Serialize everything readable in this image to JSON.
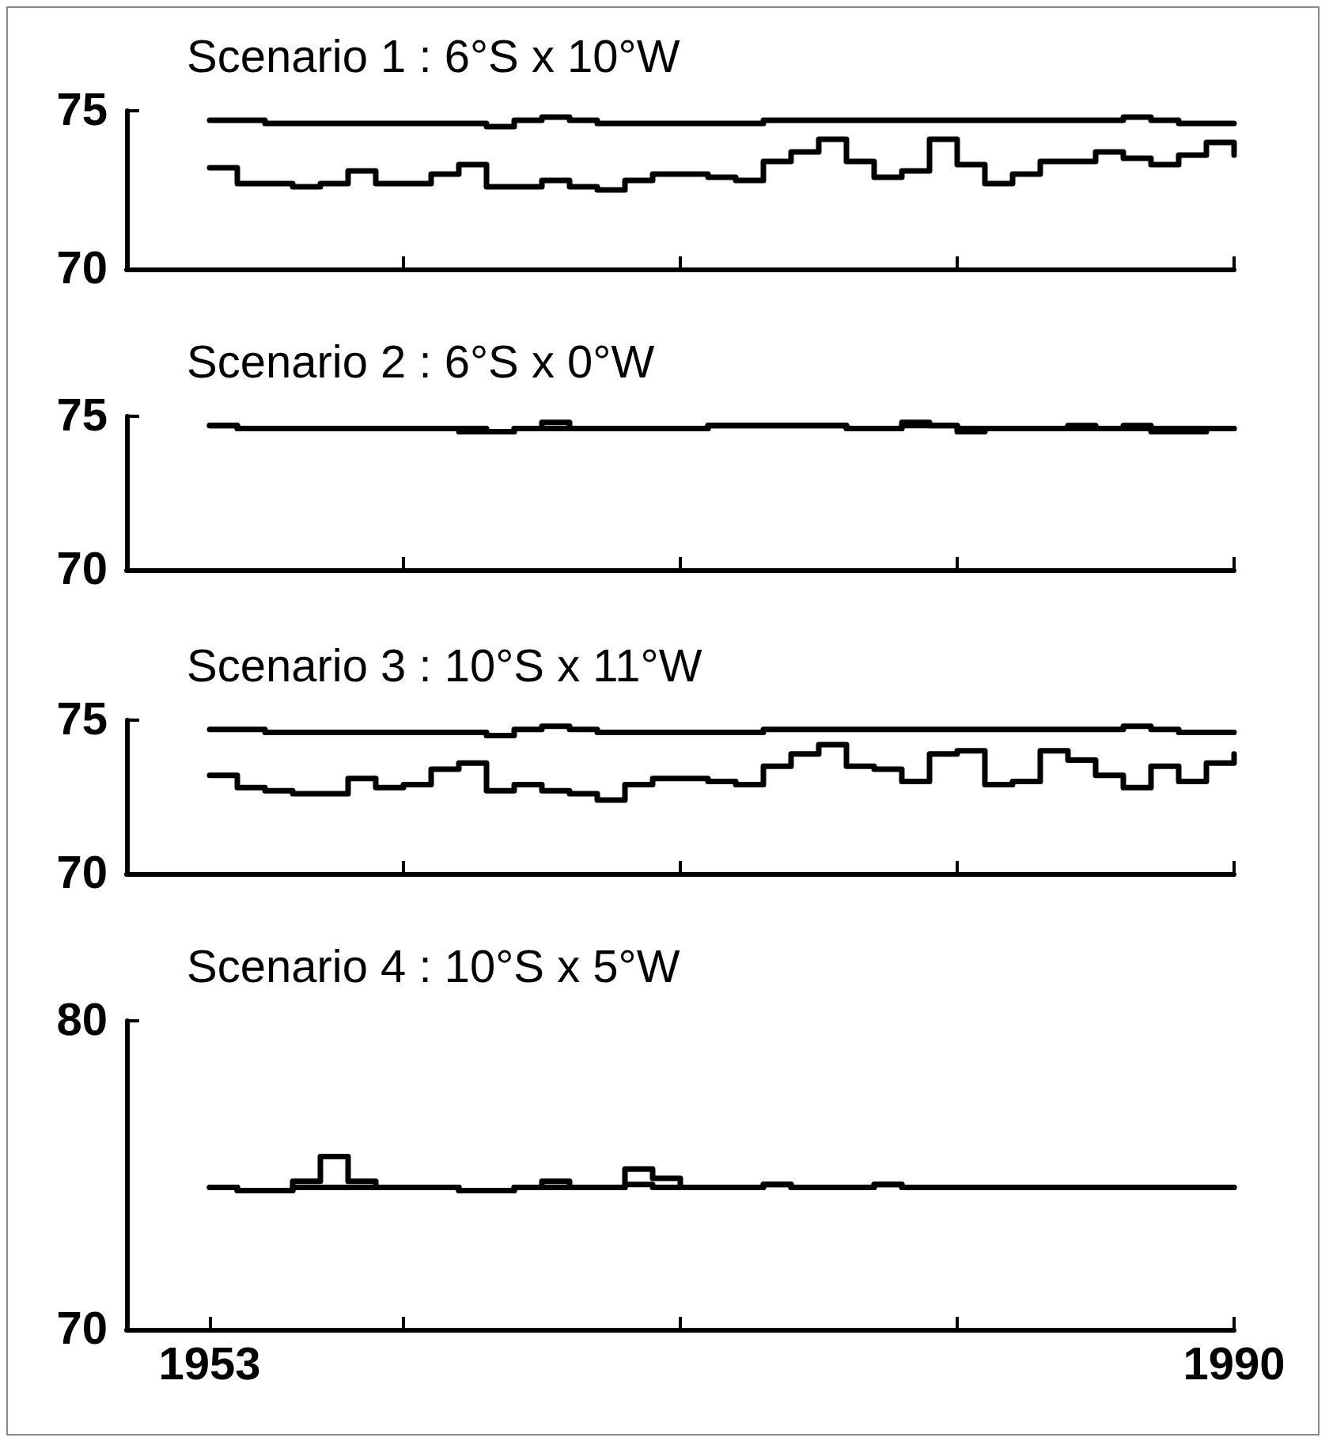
{
  "chart_data": [
    {
      "type": "step",
      "title": "Scenario 1 : 6°S x 10°W",
      "x": [
        1953,
        1954,
        1955,
        1956,
        1957,
        1958,
        1959,
        1960,
        1961,
        1962,
        1963,
        1964,
        1965,
        1966,
        1967,
        1968,
        1969,
        1970,
        1971,
        1972,
        1973,
        1974,
        1975,
        1976,
        1977,
        1978,
        1979,
        1980,
        1981,
        1982,
        1983,
        1984,
        1985,
        1986,
        1987,
        1988,
        1989,
        1990
      ],
      "xlim": [
        1950,
        1990
      ],
      "xticks": [
        {
          "value": 1950,
          "label": null
        },
        {
          "value": 1960,
          "label": null
        },
        {
          "value": 1970,
          "label": null
        },
        {
          "value": 1980,
          "label": null
        },
        {
          "value": 1990,
          "label": null
        }
      ],
      "ylim": [
        70,
        75
      ],
      "yticks": [
        70,
        75
      ],
      "tick_labels": "y",
      "marker": "none",
      "line_style": "solid",
      "series": [
        {
          "color": "#000000",
          "values": [
            74.7,
            74.7,
            74.6,
            74.6,
            74.6,
            74.6,
            74.6,
            74.6,
            74.6,
            74.6,
            74.5,
            74.7,
            74.8,
            74.7,
            74.6,
            74.6,
            74.6,
            74.6,
            74.6,
            74.6,
            74.7,
            74.7,
            74.7,
            74.7,
            74.7,
            74.7,
            74.7,
            74.7,
            74.7,
            74.7,
            74.7,
            74.7,
            74.7,
            74.8,
            74.7,
            74.6,
            74.6,
            74.6
          ]
        },
        {
          "color": "#000000",
          "values": [
            73.2,
            72.7,
            72.7,
            72.6,
            72.7,
            73.1,
            72.7,
            72.7,
            73.0,
            73.3,
            72.6,
            72.6,
            72.8,
            72.6,
            72.5,
            72.8,
            73.0,
            73.0,
            72.9,
            72.8,
            73.4,
            73.7,
            74.1,
            73.4,
            72.9,
            73.1,
            74.1,
            73.3,
            72.7,
            73.0,
            73.4,
            73.4,
            73.7,
            73.5,
            73.3,
            73.6,
            74.0,
            73.6
          ]
        }
      ]
    },
    {
      "type": "step",
      "title": "Scenario 2 : 6°S x 0°W",
      "x": [
        1953,
        1954,
        1955,
        1956,
        1957,
        1958,
        1959,
        1960,
        1961,
        1962,
        1963,
        1964,
        1965,
        1966,
        1967,
        1968,
        1969,
        1970,
        1971,
        1972,
        1973,
        1974,
        1975,
        1976,
        1977,
        1978,
        1979,
        1980,
        1981,
        1982,
        1983,
        1984,
        1985,
        1986,
        1987,
        1988,
        1989,
        1990
      ],
      "xlim": [
        1950,
        1990
      ],
      "xticks": [
        {
          "value": 1950,
          "label": null
        },
        {
          "value": 1960,
          "label": null
        },
        {
          "value": 1970,
          "label": null
        },
        {
          "value": 1980,
          "label": null
        },
        {
          "value": 1990,
          "label": null
        }
      ],
      "ylim": [
        70,
        75
      ],
      "yticks": [
        70,
        75
      ],
      "tick_labels": "y",
      "marker": "none",
      "line_style": "solid",
      "series": [
        {
          "color": "#000000",
          "values": [
            74.7,
            74.6,
            74.6,
            74.6,
            74.6,
            74.6,
            74.6,
            74.6,
            74.6,
            74.6,
            74.5,
            74.6,
            74.6,
            74.6,
            74.6,
            74.6,
            74.6,
            74.6,
            74.7,
            74.7,
            74.7,
            74.7,
            74.7,
            74.6,
            74.6,
            74.7,
            74.7,
            74.6,
            74.6,
            74.6,
            74.6,
            74.6,
            74.6,
            74.7,
            74.6,
            74.6,
            74.6,
            74.6
          ]
        },
        {
          "color": "#000000",
          "values": [
            74.7,
            74.6,
            74.6,
            74.6,
            74.6,
            74.6,
            74.6,
            74.6,
            74.6,
            74.5,
            74.5,
            74.6,
            74.8,
            74.6,
            74.6,
            74.6,
            74.6,
            74.6,
            74.7,
            74.7,
            74.7,
            74.7,
            74.7,
            74.6,
            74.6,
            74.8,
            74.7,
            74.5,
            74.6,
            74.6,
            74.6,
            74.7,
            74.6,
            74.6,
            74.5,
            74.5,
            74.6,
            74.6
          ]
        }
      ]
    },
    {
      "type": "step",
      "title": "Scenario 3 : 10°S x 11°W",
      "x": [
        1953,
        1954,
        1955,
        1956,
        1957,
        1958,
        1959,
        1960,
        1961,
        1962,
        1963,
        1964,
        1965,
        1966,
        1967,
        1968,
        1969,
        1970,
        1971,
        1972,
        1973,
        1974,
        1975,
        1976,
        1977,
        1978,
        1979,
        1980,
        1981,
        1982,
        1983,
        1984,
        1985,
        1986,
        1987,
        1988,
        1989,
        1990
      ],
      "xlim": [
        1950,
        1990
      ],
      "xticks": [
        {
          "value": 1950,
          "label": null
        },
        {
          "value": 1960,
          "label": null
        },
        {
          "value": 1970,
          "label": null
        },
        {
          "value": 1980,
          "label": null
        },
        {
          "value": 1990,
          "label": null
        }
      ],
      "ylim": [
        70,
        75
      ],
      "yticks": [
        70,
        75
      ],
      "tick_labels": "y",
      "marker": "none",
      "line_style": "solid",
      "series": [
        {
          "color": "#000000",
          "values": [
            74.7,
            74.7,
            74.6,
            74.6,
            74.6,
            74.6,
            74.6,
            74.6,
            74.6,
            74.6,
            74.5,
            74.7,
            74.8,
            74.7,
            74.6,
            74.6,
            74.6,
            74.6,
            74.6,
            74.6,
            74.7,
            74.7,
            74.7,
            74.7,
            74.7,
            74.7,
            74.7,
            74.7,
            74.7,
            74.7,
            74.7,
            74.7,
            74.7,
            74.8,
            74.7,
            74.6,
            74.6,
            74.6
          ]
        },
        {
          "color": "#000000",
          "values": [
            73.2,
            72.8,
            72.7,
            72.6,
            72.6,
            73.1,
            72.8,
            72.9,
            73.4,
            73.6,
            72.7,
            72.9,
            72.7,
            72.6,
            72.4,
            72.9,
            73.1,
            73.1,
            73.0,
            72.9,
            73.5,
            73.9,
            74.2,
            73.5,
            73.4,
            73.0,
            73.9,
            74.0,
            72.9,
            73.0,
            74.0,
            73.7,
            73.2,
            72.8,
            73.5,
            73.0,
            73.6,
            73.9
          ]
        }
      ]
    },
    {
      "type": "step",
      "title": "Scenario 4 : 10°S x 5°W",
      "x": [
        1953,
        1954,
        1955,
        1956,
        1957,
        1958,
        1959,
        1960,
        1961,
        1962,
        1963,
        1964,
        1965,
        1966,
        1967,
        1968,
        1969,
        1970,
        1971,
        1972,
        1973,
        1974,
        1975,
        1976,
        1977,
        1978,
        1979,
        1980,
        1981,
        1982,
        1983,
        1984,
        1985,
        1986,
        1987,
        1988,
        1989,
        1990
      ],
      "xlim": [
        1950,
        1990
      ],
      "xticks": [
        {
          "value": 1950,
          "label": null
        },
        {
          "value": 1953,
          "label": "1953"
        },
        {
          "value": 1960,
          "label": null
        },
        {
          "value": 1970,
          "label": null
        },
        {
          "value": 1980,
          "label": null
        },
        1990
      ],
      "ylim": [
        70,
        80
      ],
      "yticks": [
        70,
        80
      ],
      "marker": "none",
      "line_style": "solid",
      "series": [
        {
          "color": "#000000",
          "values": [
            74.6,
            74.5,
            74.5,
            74.6,
            74.6,
            74.6,
            74.6,
            74.6,
            74.6,
            74.5,
            74.5,
            74.6,
            74.6,
            74.6,
            74.6,
            74.7,
            74.6,
            74.6,
            74.6,
            74.6,
            74.7,
            74.6,
            74.6,
            74.6,
            74.7,
            74.6,
            74.6,
            74.6,
            74.6,
            74.6,
            74.6,
            74.6,
            74.6,
            74.6,
            74.6,
            74.6,
            74.6,
            74.6
          ]
        },
        {
          "color": "#000000",
          "values": [
            74.6,
            74.5,
            74.5,
            74.8,
            75.6,
            74.8,
            74.6,
            74.6,
            74.6,
            74.5,
            74.5,
            74.6,
            74.8,
            74.6,
            74.6,
            75.2,
            74.9,
            74.6,
            74.6,
            74.6,
            74.7,
            74.6,
            74.6,
            74.6,
            74.7,
            74.6,
            74.6,
            74.6,
            74.6,
            74.6,
            74.6,
            74.6,
            74.6,
            74.6,
            74.6,
            74.6,
            74.6,
            74.6
          ]
        }
      ]
    }
  ]
}
